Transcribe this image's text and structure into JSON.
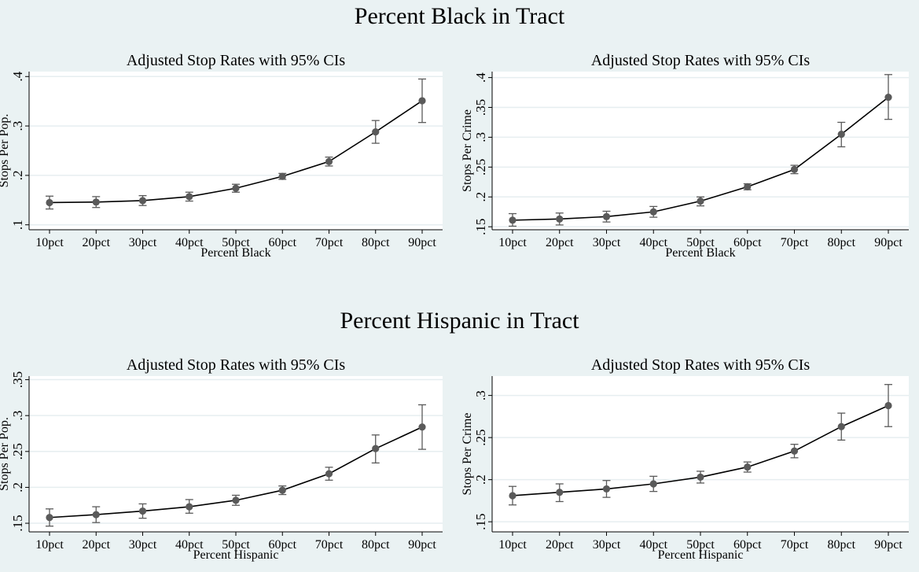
{
  "sections": [
    {
      "title": "Percent Black in Tract"
    },
    {
      "title": "Percent Hispanic in Tract"
    }
  ],
  "colors": {
    "background": "#eaf2f3",
    "plot_area": "#ffffff",
    "grid": "#e6eef0",
    "line": "#000000",
    "marker": "#5a5a5a",
    "error_bar": "#5a5a5a"
  },
  "chart_data": [
    {
      "type": "line",
      "title": "Adjusted Stop Rates with 95% CIs",
      "xlabel": "Percent Black",
      "ylabel": "Stops Per Pop.",
      "categories": [
        "10pct",
        "20pct",
        "30pct",
        "40pct",
        "50pct",
        "60pct",
        "70pct",
        "80pct",
        "90pct"
      ],
      "ylim": [
        0.09,
        0.41
      ],
      "yticks": [
        0.1,
        0.2,
        0.3,
        0.4
      ],
      "ytick_labels": [
        ".1",
        ".2",
        ".3",
        ".4"
      ],
      "grid": true,
      "values": [
        0.145,
        0.146,
        0.149,
        0.157,
        0.174,
        0.198,
        0.228,
        0.288,
        0.351
      ],
      "ci_low": [
        0.132,
        0.135,
        0.139,
        0.148,
        0.166,
        0.192,
        0.219,
        0.265,
        0.307
      ],
      "ci_high": [
        0.158,
        0.157,
        0.159,
        0.166,
        0.182,
        0.204,
        0.237,
        0.311,
        0.395
      ]
    },
    {
      "type": "line",
      "title": "Adjusted Stop Rates with 95% CIs",
      "xlabel": "Percent Black",
      "ylabel": "Stops Per Crime",
      "categories": [
        "10pct",
        "20pct",
        "30pct",
        "40pct",
        "50pct",
        "60pct",
        "70pct",
        "80pct",
        "90pct"
      ],
      "ylim": [
        0.145,
        0.41
      ],
      "yticks": [
        0.15,
        0.2,
        0.25,
        0.3,
        0.35,
        0.4
      ],
      "ytick_labels": [
        ".15",
        ".2",
        ".25",
        ".3",
        ".35",
        ".4"
      ],
      "grid": true,
      "values": [
        0.161,
        0.163,
        0.167,
        0.175,
        0.193,
        0.217,
        0.246,
        0.305,
        0.367
      ],
      "ci_low": [
        0.151,
        0.153,
        0.158,
        0.166,
        0.185,
        0.212,
        0.239,
        0.284,
        0.33
      ],
      "ci_high": [
        0.172,
        0.173,
        0.176,
        0.184,
        0.2,
        0.222,
        0.253,
        0.325,
        0.405
      ]
    },
    {
      "type": "line",
      "title": "Adjusted Stop Rates with 95% CIs",
      "xlabel": "Percent Hispanic",
      "ylabel": "Stops Per Pop.",
      "categories": [
        "10pct",
        "20pct",
        "30pct",
        "40pct",
        "50pct",
        "60pct",
        "70pct",
        "80pct",
        "90pct"
      ],
      "ylim": [
        0.138,
        0.355
      ],
      "yticks": [
        0.15,
        0.2,
        0.25,
        0.3,
        0.35
      ],
      "ytick_labels": [
        ".15",
        ".2",
        ".25",
        ".3",
        ".35"
      ],
      "grid": true,
      "values": [
        0.158,
        0.162,
        0.167,
        0.173,
        0.182,
        0.196,
        0.219,
        0.254,
        0.284
      ],
      "ci_low": [
        0.146,
        0.151,
        0.157,
        0.164,
        0.175,
        0.19,
        0.21,
        0.234,
        0.253
      ],
      "ci_high": [
        0.17,
        0.173,
        0.177,
        0.183,
        0.189,
        0.202,
        0.228,
        0.273,
        0.315
      ]
    },
    {
      "type": "line",
      "title": "Adjusted Stop Rates with 95% CIs",
      "xlabel": "Percent Hispanic",
      "ylabel": "Stops Per Crime",
      "categories": [
        "10pct",
        "20pct",
        "30pct",
        "40pct",
        "50pct",
        "60pct",
        "70pct",
        "80pct",
        "90pct"
      ],
      "ylim": [
        0.138,
        0.323
      ],
      "yticks": [
        0.15,
        0.2,
        0.25,
        0.3
      ],
      "ytick_labels": [
        ".15",
        ".2",
        ".25",
        ".3"
      ],
      "grid": true,
      "values": [
        0.181,
        0.185,
        0.189,
        0.195,
        0.203,
        0.215,
        0.234,
        0.263,
        0.288
      ],
      "ci_low": [
        0.17,
        0.174,
        0.179,
        0.186,
        0.196,
        0.209,
        0.226,
        0.247,
        0.263
      ],
      "ci_high": [
        0.192,
        0.195,
        0.199,
        0.204,
        0.21,
        0.221,
        0.242,
        0.279,
        0.313
      ]
    }
  ]
}
